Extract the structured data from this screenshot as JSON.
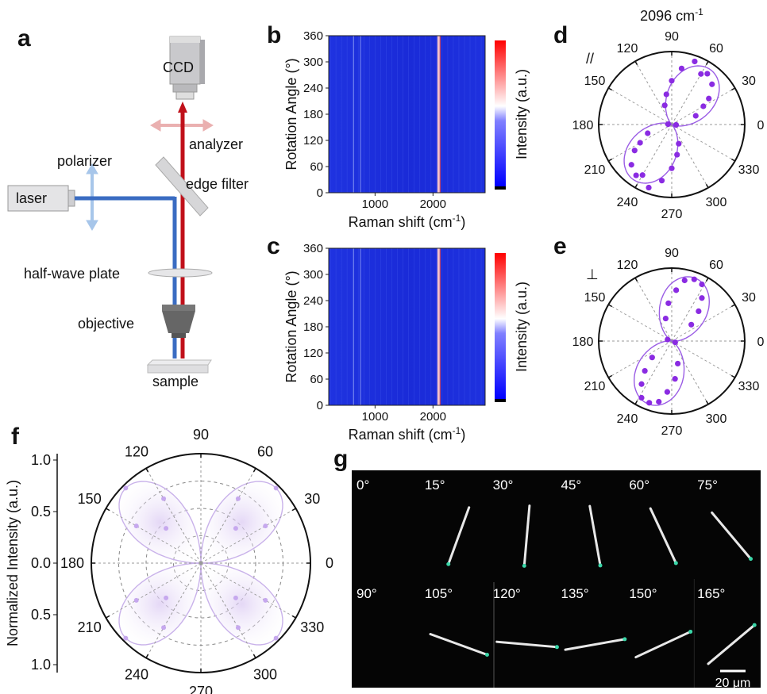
{
  "panel_labels": {
    "a": "a",
    "b": "b",
    "c": "c",
    "d": "d",
    "e": "e",
    "f": "f",
    "g": "g"
  },
  "setup": {
    "ccd": "CCD",
    "analyzer": "analyzer",
    "polarizer": "polarizer",
    "laser": "laser",
    "edge_filter": "edge filter",
    "half_wave_plate": "half-wave plate",
    "objective": "objective",
    "sample": "sample"
  },
  "colors": {
    "laser_beam": "#3a6cc2",
    "raman_beam": "#c0101a",
    "polar_fit": "#9b5de5",
    "polar_point": "#8a2be2",
    "heatmap_bg": "#1a2bd8"
  },
  "chart_data": [
    {
      "panel": "b",
      "type": "heatmap",
      "xlabel": "Raman shift (cm",
      "xlabel_sup": "-1",
      "xlabel_end": ")",
      "ylabel": "Rotation Angle (°)",
      "xticks": [
        "1000",
        "2000"
      ],
      "yticks": [
        "0",
        "60",
        "120",
        "180",
        "240",
        "300",
        "360"
      ],
      "xlim": [
        200,
        2900
      ],
      "ylim": [
        0,
        360
      ],
      "colorbar_label": "Intensity (a.u.)",
      "peak_lines": [
        2096,
        750,
        630
      ]
    },
    {
      "panel": "c",
      "type": "heatmap",
      "xlabel": "Raman shift (cm",
      "xlabel_sup": "-1",
      "xlabel_end": ")",
      "ylabel": "Rotation Angle (°)",
      "xticks": [
        "1000",
        "2000"
      ],
      "yticks": [
        "0",
        "60",
        "120",
        "180",
        "240",
        "300",
        "360"
      ],
      "xlim": [
        200,
        2900
      ],
      "ylim": [
        0,
        360
      ],
      "colorbar_label": "Intensity (a.u.)",
      "peak_lines": [
        2096,
        750,
        630
      ]
    },
    {
      "panel": "d",
      "type": "scatter",
      "title": "2096 cm",
      "title_sup": "-1",
      "mode_label": "//",
      "angle_labels": [
        "0",
        "30",
        "60",
        "90",
        "120",
        "150",
        "180",
        "210",
        "240",
        "270",
        "300",
        "330"
      ],
      "lobe_angle_deg": 55,
      "points": [
        [
          60,
          0.8
        ],
        [
          70,
          0.92
        ],
        [
          55,
          0.85
        ],
        [
          45,
          0.78
        ],
        [
          35,
          0.62
        ],
        [
          30,
          0.5
        ],
        [
          80,
          0.78
        ],
        [
          90,
          0.6
        ],
        [
          100,
          0.42
        ],
        [
          110,
          0.28
        ],
        [
          20,
          0.35
        ],
        [
          240,
          0.8
        ],
        [
          250,
          0.92
        ],
        [
          235,
          0.85
        ],
        [
          225,
          0.78
        ],
        [
          215,
          0.62
        ],
        [
          210,
          0.5
        ],
        [
          260,
          0.78
        ],
        [
          270,
          0.6
        ],
        [
          280,
          0.42
        ],
        [
          290,
          0.28
        ],
        [
          200,
          0.35
        ],
        [
          175,
          0.05
        ],
        [
          355,
          0.06
        ]
      ]
    },
    {
      "panel": "e",
      "type": "scatter",
      "mode_label": "⊥",
      "angle_labels": [
        "0",
        "30",
        "60",
        "90",
        "120",
        "150",
        "180",
        "210",
        "240",
        "270",
        "300",
        "330"
      ],
      "lobe_angle_deg": 70,
      "points": [
        [
          70,
          0.9
        ],
        [
          78,
          0.85
        ],
        [
          62,
          0.88
        ],
        [
          55,
          0.72
        ],
        [
          48,
          0.55
        ],
        [
          85,
          0.7
        ],
        [
          95,
          0.52
        ],
        [
          105,
          0.32
        ],
        [
          40,
          0.35
        ],
        [
          250,
          0.9
        ],
        [
          258,
          0.85
        ],
        [
          242,
          0.88
        ],
        [
          235,
          0.72
        ],
        [
          228,
          0.55
        ],
        [
          265,
          0.7
        ],
        [
          275,
          0.52
        ],
        [
          285,
          0.32
        ],
        [
          220,
          0.35
        ],
        [
          160,
          0.06
        ],
        [
          340,
          0.05
        ]
      ]
    },
    {
      "panel": "f",
      "type": "scatter",
      "ylabel": "Normalized Intensity (a.u.)",
      "r_ticks": [
        "1.0",
        "0.5",
        "0.0",
        "0.5",
        "1.0"
      ],
      "angle_labels": [
        "0",
        "30",
        "60",
        "90",
        "120",
        "150",
        "180",
        "210",
        "240",
        "270",
        "300",
        "330"
      ],
      "lobe_angles_deg": [
        45,
        135,
        225,
        315
      ],
      "points": [
        [
          45,
          0.97
        ],
        [
          30,
          0.68
        ],
        [
          60,
          0.68
        ],
        [
          135,
          0.97
        ],
        [
          120,
          0.68
        ],
        [
          150,
          0.68
        ],
        [
          225,
          0.97
        ],
        [
          210,
          0.68
        ],
        [
          240,
          0.68
        ],
        [
          315,
          0.97
        ],
        [
          300,
          0.68
        ],
        [
          330,
          0.68
        ],
        [
          45,
          0.45
        ],
        [
          135,
          0.45
        ],
        [
          225,
          0.45
        ],
        [
          315,
          0.45
        ]
      ]
    }
  ],
  "micrographs": {
    "angles": [
      "0°",
      "15°",
      "30°",
      "45°",
      "60°",
      "75°",
      "90°",
      "105°",
      "120°",
      "135°",
      "150°",
      "165°"
    ],
    "scale_bar": "20 μm"
  }
}
